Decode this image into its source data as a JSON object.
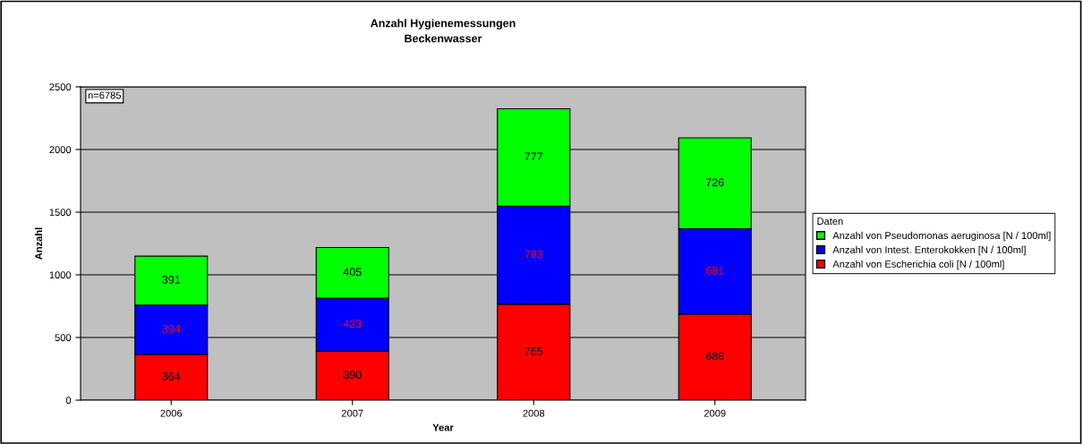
{
  "chart_data": {
    "type": "bar",
    "stacked": true,
    "title": "Anzahl Hygienemessungen",
    "subtitle": "Beckenwasser",
    "xlabel": "Year",
    "ylabel": "Anzahl",
    "legend_title": "Daten",
    "legend": "right",
    "grid": "y",
    "data_labels": true,
    "categories": [
      "2006",
      "2007",
      "2008",
      "2009"
    ],
    "series": [
      {
        "name": "Anzahl von Escherichia coli [N / 100ml]",
        "color": "#ff0000",
        "values": [
          364,
          390,
          765,
          686
        ]
      },
      {
        "name": "Anzahl von Intest. Enterokokken [N / 100ml]",
        "color": "#0000ff",
        "values": [
          394,
          423,
          783,
          681
        ]
      },
      {
        "name": "Anzahl von Pseudomonas aeruginosa [N / 100ml]",
        "color": "#00ff00",
        "values": [
          391,
          405,
          777,
          726
        ]
      }
    ],
    "ylim": [
      0,
      2500
    ],
    "yticks": [
      0,
      500,
      1000,
      1500,
      2000,
      2500
    ],
    "annotations": [
      "n=6785"
    ]
  }
}
